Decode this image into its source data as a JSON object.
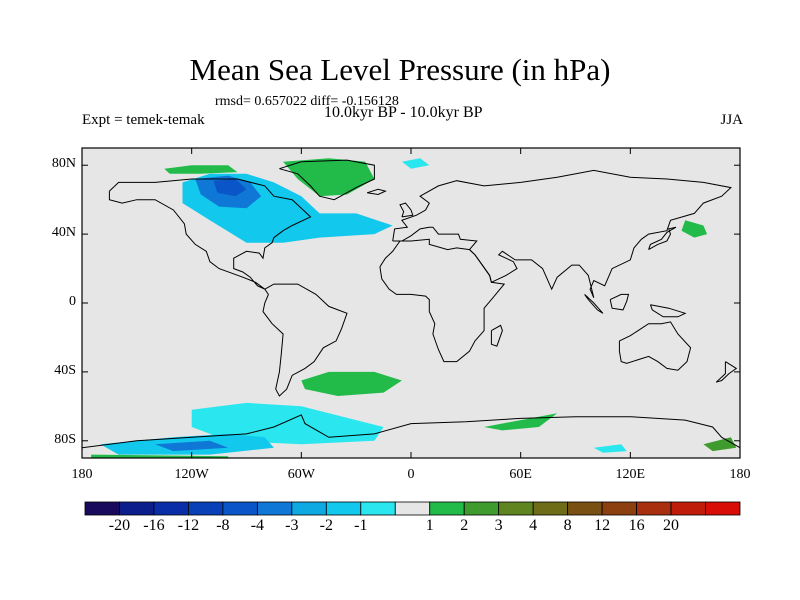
{
  "title": "Mean Sea Level Pressure (in hPa)",
  "stats_text": "rmsd= 0.657022 diff= -0.156128",
  "expt_text": "Expt = temek-temak",
  "period_text": "10.0kyr BP - 10.0kyr BP",
  "season": "JJA",
  "lat_ticks": [
    {
      "value": 80,
      "label": "80N"
    },
    {
      "value": 40,
      "label": "40N"
    },
    {
      "value": 0,
      "label": "0"
    },
    {
      "value": -40,
      "label": "40S"
    },
    {
      "value": -80,
      "label": "80S"
    }
  ],
  "lon_ticks": [
    {
      "value": -180,
      "label": "180"
    },
    {
      "value": -120,
      "label": "120W"
    },
    {
      "value": -60,
      "label": "60W"
    },
    {
      "value": 0,
      "label": "0"
    },
    {
      "value": 60,
      "label": "60E"
    },
    {
      "value": 120,
      "label": "120E"
    },
    {
      "value": 180,
      "label": "180"
    }
  ],
  "colorbar": {
    "colors": [
      "#1a0a5e",
      "#0c1e8c",
      "#0a2ea8",
      "#0840b8",
      "#0a56c8",
      "#0f78d6",
      "#0ea8e2",
      "#12c8ec",
      "#2ae6ee",
      "#e6e6e6",
      "#22bb4a",
      "#3f9b2e",
      "#5f8420",
      "#6f6c18",
      "#7a5012",
      "#8c4010",
      "#a8300e",
      "#c01c0a",
      "#d80e06"
    ],
    "labels": [
      "-20",
      "-16",
      "-12",
      "-8",
      "-4",
      "-3",
      "-2",
      "-1",
      "1",
      "2",
      "3",
      "4",
      "8",
      "12",
      "16",
      "20"
    ]
  },
  "map_data": {
    "lon_range": [
      -180,
      180
    ],
    "lat_range": [
      -90,
      90
    ],
    "background": "#e6e6e6",
    "anomaly_regions": [
      {
        "level": "-3",
        "color": "#12c8ec",
        "polygon": [
          [
            -125,
            70
          ],
          [
            -110,
            75
          ],
          [
            -90,
            75
          ],
          [
            -75,
            70
          ],
          [
            -60,
            62
          ],
          [
            -50,
            52
          ],
          [
            -30,
            52
          ],
          [
            -10,
            45
          ],
          [
            -20,
            40
          ],
          [
            -50,
            38
          ],
          [
            -70,
            35
          ],
          [
            -90,
            35
          ],
          [
            -110,
            48
          ],
          [
            -125,
            58
          ]
        ]
      },
      {
        "level": "-4",
        "color": "#0f78d6",
        "polygon": [
          [
            -118,
            72
          ],
          [
            -100,
            74
          ],
          [
            -88,
            70
          ],
          [
            -82,
            62
          ],
          [
            -90,
            55
          ],
          [
            -105,
            56
          ],
          [
            -115,
            63
          ]
        ]
      },
      {
        "level": "-8",
        "color": "#0a56c8",
        "polygon": [
          [
            -108,
            71
          ],
          [
            -96,
            72
          ],
          [
            -90,
            66
          ],
          [
            -96,
            62
          ],
          [
            -106,
            64
          ]
        ]
      },
      {
        "level": "2",
        "color": "#22bb4a",
        "polygon": [
          [
            -70,
            82
          ],
          [
            -45,
            84
          ],
          [
            -25,
            82
          ],
          [
            -20,
            72
          ],
          [
            -35,
            63
          ],
          [
            -50,
            62
          ],
          [
            -62,
            72
          ]
        ]
      },
      {
        "level": "2",
        "color": "#22bb4a",
        "polygon": [
          [
            -135,
            78
          ],
          [
            -120,
            80
          ],
          [
            -100,
            80
          ],
          [
            -95,
            76
          ],
          [
            -115,
            75
          ],
          [
            -132,
            75
          ]
        ]
      },
      {
        "level": "2",
        "color": "#22bb4a",
        "polygon": [
          [
            150,
            48
          ],
          [
            160,
            45
          ],
          [
            162,
            40
          ],
          [
            155,
            38
          ],
          [
            148,
            42
          ]
        ]
      },
      {
        "level": "2",
        "color": "#22bb4a",
        "polygon": [
          [
            -60,
            -45
          ],
          [
            -45,
            -40
          ],
          [
            -20,
            -40
          ],
          [
            -5,
            -45
          ],
          [
            -15,
            -52
          ],
          [
            -40,
            -54
          ],
          [
            -58,
            -50
          ]
        ]
      },
      {
        "level": "-2",
        "color": "#2ae6ee",
        "polygon": [
          [
            -120,
            -62
          ],
          [
            -90,
            -58
          ],
          [
            -60,
            -60
          ],
          [
            -30,
            -68
          ],
          [
            -15,
            -72
          ],
          [
            -20,
            -80
          ],
          [
            -60,
            -82
          ],
          [
            -100,
            -80
          ],
          [
            -120,
            -72
          ]
        ]
      },
      {
        "level": "-3",
        "color": "#12c8ec",
        "polygon": [
          [
            -170,
            -82
          ],
          [
            -130,
            -78
          ],
          [
            -100,
            -76
          ],
          [
            -80,
            -78
          ],
          [
            -75,
            -84
          ],
          [
            -110,
            -88
          ],
          [
            -160,
            -88
          ]
        ]
      },
      {
        "level": "-4",
        "color": "#0f78d6",
        "polygon": [
          [
            -140,
            -82
          ],
          [
            -110,
            -80
          ],
          [
            -100,
            -84
          ],
          [
            -130,
            -86
          ]
        ]
      },
      {
        "level": "2",
        "color": "#22bb4a",
        "polygon": [
          [
            40,
            -72
          ],
          [
            60,
            -68
          ],
          [
            80,
            -64
          ],
          [
            70,
            -72
          ],
          [
            50,
            -74
          ]
        ]
      },
      {
        "level": "2",
        "color": "#22bb4a",
        "polygon": [
          [
            -175,
            -88
          ],
          [
            -100,
            -89
          ],
          [
            -100,
            -90
          ],
          [
            -175,
            -90
          ]
        ]
      },
      {
        "level": "3",
        "color": "#3f9b2e",
        "polygon": [
          [
            160,
            -82
          ],
          [
            175,
            -78
          ],
          [
            178,
            -84
          ],
          [
            165,
            -86
          ]
        ]
      },
      {
        "level": "-1",
        "color": "#2ae6ee",
        "polygon": [
          [
            -5,
            82
          ],
          [
            5,
            84
          ],
          [
            10,
            80
          ],
          [
            0,
            78
          ]
        ]
      },
      {
        "level": "-1",
        "color": "#2ae6ee",
        "polygon": [
          [
            100,
            -84
          ],
          [
            115,
            -82
          ],
          [
            118,
            -86
          ],
          [
            105,
            -87
          ]
        ]
      }
    ]
  }
}
